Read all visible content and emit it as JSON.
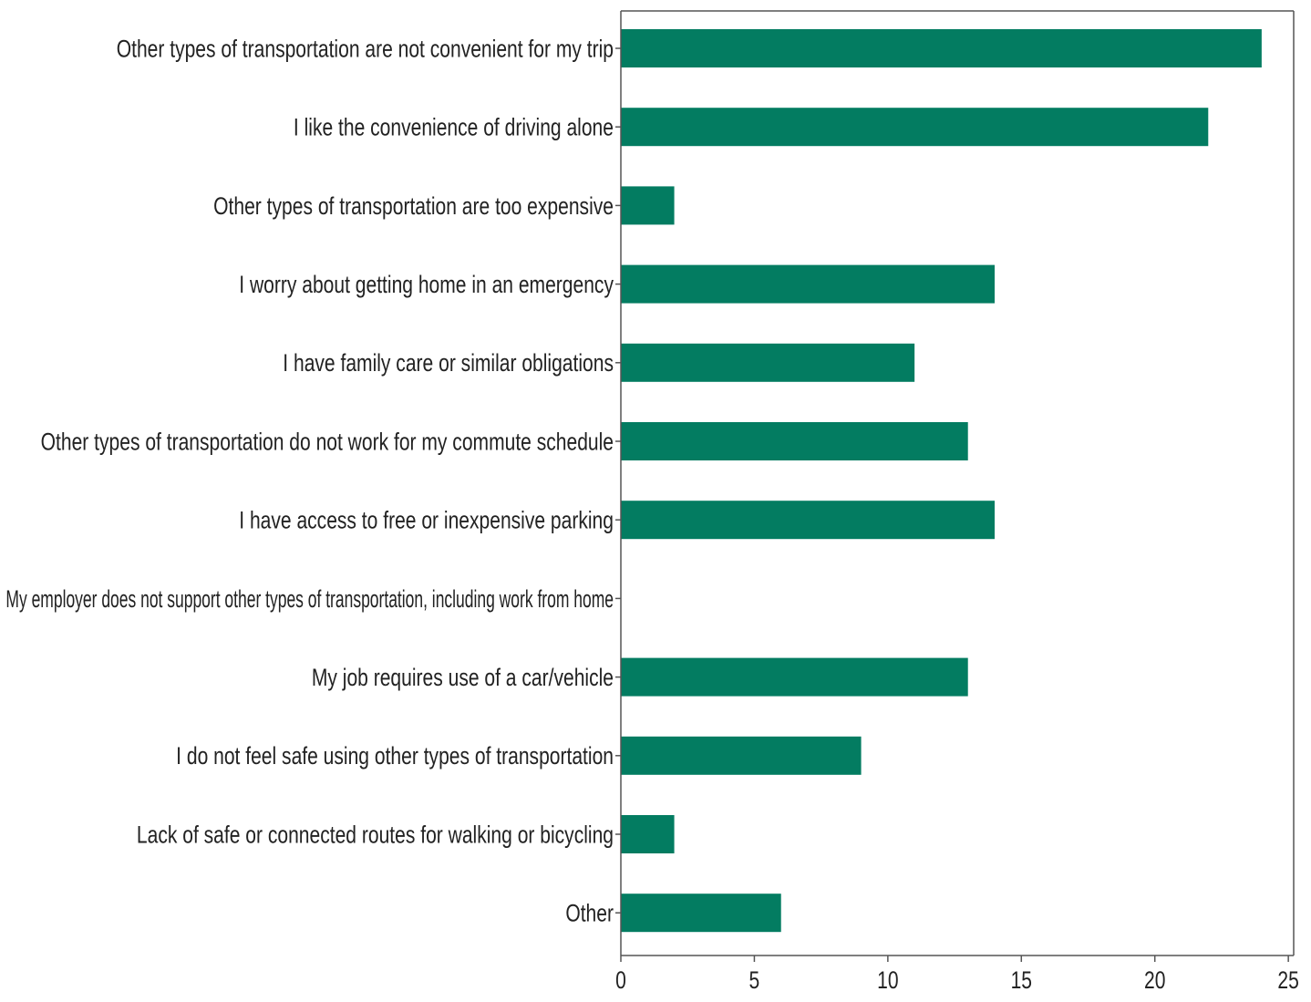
{
  "chart_data": {
    "type": "bar",
    "orientation": "horizontal",
    "categories": [
      "Other types of transportation are not convenient for my trip",
      "I like the convenience of driving alone",
      "Other types of transportation are too expensive",
      "I worry about getting home in an emergency",
      "I have family care or similar obligations",
      "Other types of transportation do not work for my commute schedule",
      "I have access to free or inexpensive parking",
      "My employer does not support other types of transportation, including work from home",
      "My job requires use of a car/vehicle",
      "I do not feel safe using other types of transportation",
      "Lack of safe or connected routes for walking or bicycling",
      "Other"
    ],
    "values": [
      24,
      22,
      2,
      14,
      11,
      13,
      14,
      0,
      13,
      9,
      2,
      6
    ],
    "x_ticks": [
      "0",
      "5",
      "10",
      "15",
      "20",
      "25"
    ],
    "x_tick_values": [
      0,
      5,
      10,
      15,
      20,
      25
    ],
    "xlim": [
      0,
      25.2
    ],
    "title": "",
    "xlabel": "",
    "ylabel": "",
    "grid": false,
    "legend": "none",
    "bar_color": "#037c61",
    "axis_color": "#555555"
  }
}
